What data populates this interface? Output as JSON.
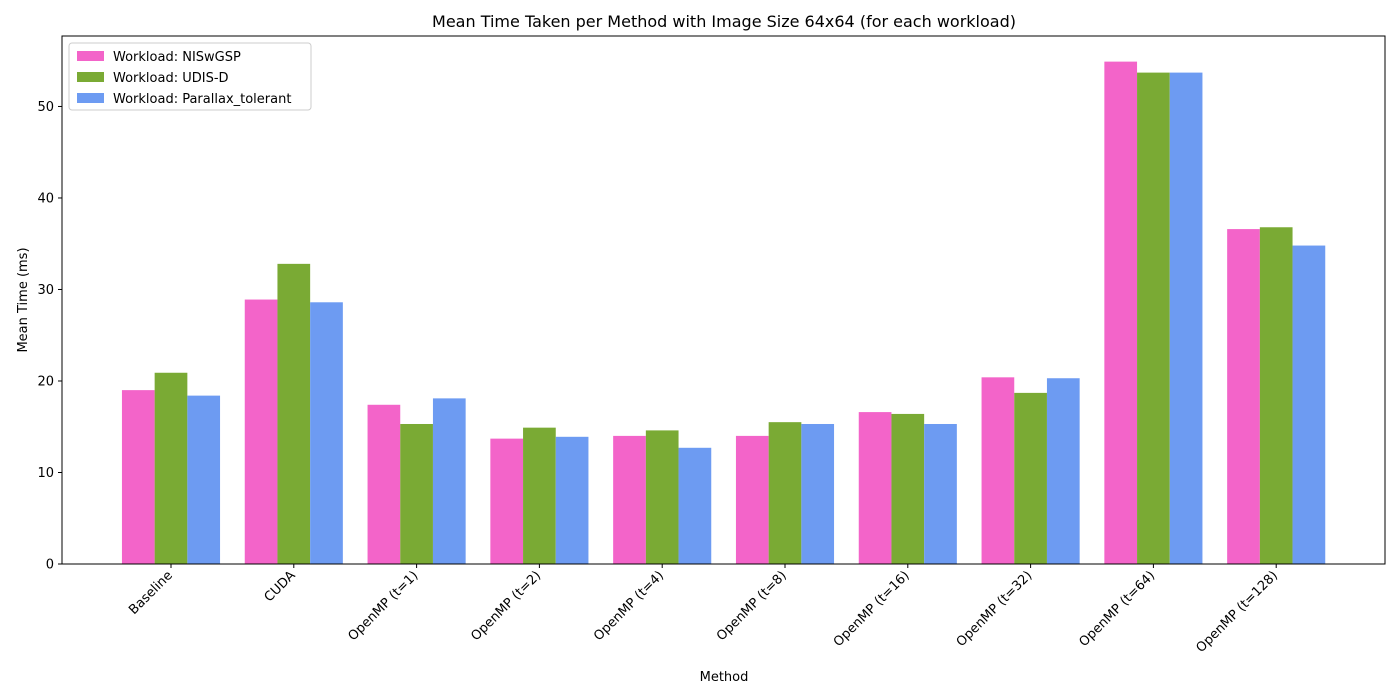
{
  "chart_data": {
    "type": "bar",
    "title": "Mean Time Taken per Method with Image Size 64x64 (for each workload)",
    "xlabel": "Method",
    "ylabel": "Mean Time (ms)",
    "ylim": [
      0,
      57.7
    ],
    "yticks": [
      0,
      10,
      20,
      30,
      40,
      50
    ],
    "grid": false,
    "legend_position": "top-left",
    "categories": [
      "Baseline",
      "CUDA",
      "OpenMP (t=1)",
      "OpenMP (t=2)",
      "OpenMP (t=4)",
      "OpenMP (t=8)",
      "OpenMP (t=16)",
      "OpenMP (t=32)",
      "OpenMP (t=64)",
      "OpenMP (t=128)"
    ],
    "series": [
      {
        "name": "Workload: NISwGSP",
        "color": "#f364c9",
        "values": [
          19.0,
          28.9,
          17.4,
          13.7,
          14.0,
          14.0,
          16.6,
          20.4,
          54.9,
          36.6
        ]
      },
      {
        "name": "Workload: UDIS-D",
        "color": "#7aaa34",
        "values": [
          20.9,
          32.8,
          15.3,
          14.9,
          14.6,
          15.5,
          16.4,
          18.7,
          53.7,
          36.8
        ]
      },
      {
        "name": "Workload: Parallax_tolerant",
        "color": "#6d9bf2",
        "values": [
          18.4,
          28.6,
          18.1,
          13.9,
          12.7,
          15.3,
          15.3,
          20.3,
          53.7,
          34.8
        ]
      }
    ]
  }
}
